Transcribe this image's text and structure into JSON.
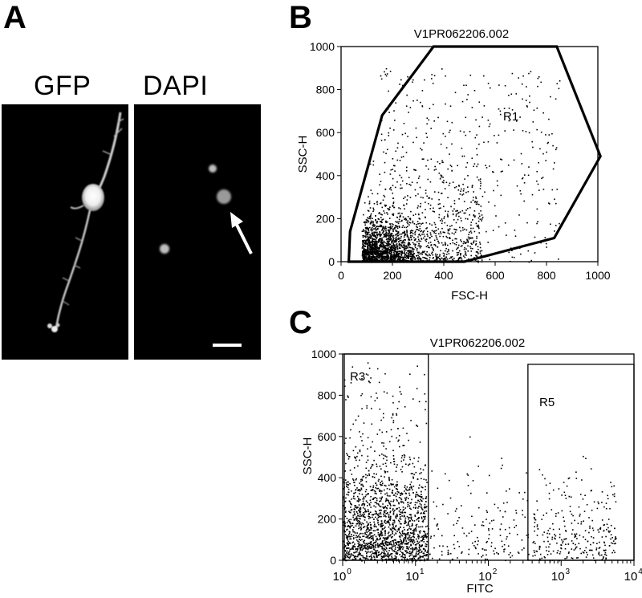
{
  "panelA": {
    "letter": "A",
    "gfp_label": "GFP",
    "dapi_label": "DAPI"
  },
  "panelB": {
    "letter": "B",
    "title": "V1PR062206.002",
    "xlabel": "FSC-H",
    "ylabel": "SSC-H",
    "region_label": "R1"
  },
  "panelC": {
    "letter": "C",
    "title": "V1PR062206.002",
    "xlabel": "FITC",
    "ylabel": "SSC-H",
    "region3_label": "R3",
    "region5_label": "R5"
  },
  "chart_data": [
    {
      "type": "scatter",
      "title": "V1PR062206.002",
      "xlabel": "FSC-H",
      "ylabel": "SSC-H",
      "xlim": [
        0,
        1000
      ],
      "ylim": [
        0,
        1000
      ],
      "xticks": [
        0,
        200,
        400,
        600,
        800,
        1000
      ],
      "yticks": [
        0,
        200,
        400,
        600,
        800,
        1000
      ],
      "gate": {
        "name": "R1",
        "polygon": [
          [
            30,
            0
          ],
          [
            35,
            140
          ],
          [
            160,
            680
          ],
          [
            360,
            1000
          ],
          [
            840,
            1000
          ],
          [
            1010,
            490
          ],
          [
            830,
            110
          ],
          [
            480,
            0
          ]
        ]
      }
    },
    {
      "type": "scatter",
      "title": "V1PR062206.002",
      "xlabel": "FITC",
      "ylabel": "SSC-H",
      "xscale": "log",
      "xlim": [
        1,
        10000
      ],
      "ylim": [
        0,
        1000
      ],
      "xticks": [
        "10^0",
        "10^1",
        "10^2",
        "10^3",
        "10^4"
      ],
      "yticks": [
        0,
        200,
        400,
        600,
        800,
        1000
      ],
      "gates": [
        {
          "name": "R3",
          "x": [
            1,
            15
          ],
          "y": [
            0,
            1000
          ]
        },
        {
          "name": "R5",
          "x": [
            350,
            10000
          ],
          "y": [
            0,
            950
          ]
        }
      ]
    }
  ]
}
